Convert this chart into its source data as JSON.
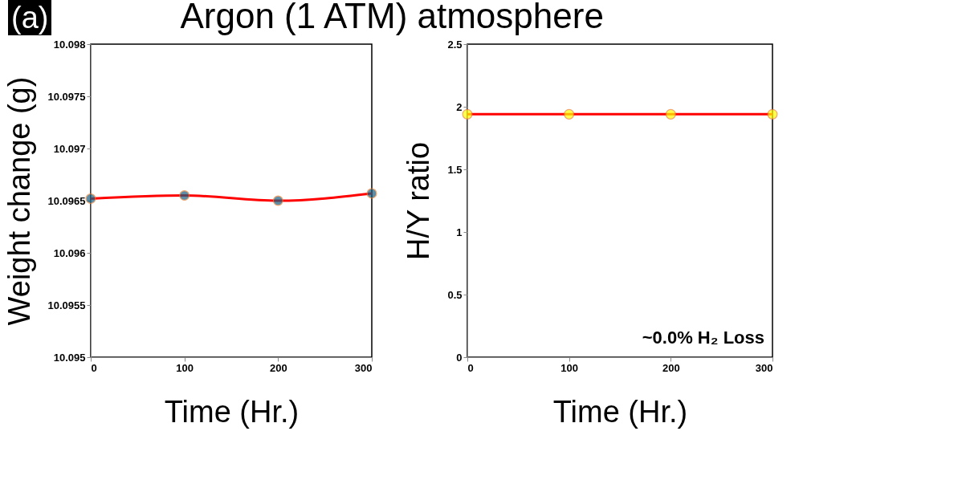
{
  "chart_data": [
    {
      "type": "line",
      "title": "Argon (1 ATM) atmosphere",
      "annotations": [
        "(a)"
      ],
      "xlabel": "Time (Hr.)",
      "ylabel": "Weight change (g)",
      "x": [
        0,
        100,
        200,
        300
      ],
      "series": [
        {
          "color": "#ff0000",
          "colors": [
            "#1a5f80",
            "#1a5f80",
            "#1a5f80",
            "#1a5f80"
          ],
          "values": [
            10.09652,
            10.09655,
            10.0965,
            10.09657
          ]
        }
      ],
      "xlim": [
        0,
        300
      ],
      "xticks": [
        0,
        100,
        200,
        300
      ],
      "ylim": [
        10.095,
        10.098
      ],
      "yticks": [
        10.095,
        10.0955,
        10.096,
        10.0965,
        10.097,
        10.0975,
        10.098
      ],
      "grid": false,
      "legend": false,
      "marker": "circle",
      "line_style": "solid"
    },
    {
      "type": "line",
      "annotations": [
        "~0.0% H₂ Loss"
      ],
      "xlabel": "Time (Hr.)",
      "ylabel": "H/Y ratio",
      "x": [
        0,
        100,
        200,
        300
      ],
      "series": [
        {
          "color": "#ff0000",
          "colors": [
            "#ffff00",
            "#ffff00",
            "#ffff00",
            "#ffff00"
          ],
          "values": [
            1.94,
            1.94,
            1.94,
            1.94
          ]
        }
      ],
      "xlim": [
        0,
        300
      ],
      "xticks": [
        0,
        100,
        200,
        300
      ],
      "ylim": [
        0,
        2.5
      ],
      "yticks": [
        0,
        0.5,
        1,
        1.5,
        2,
        2.5
      ],
      "grid": false,
      "legend": false,
      "marker": "circle",
      "line_style": "solid"
    }
  ]
}
